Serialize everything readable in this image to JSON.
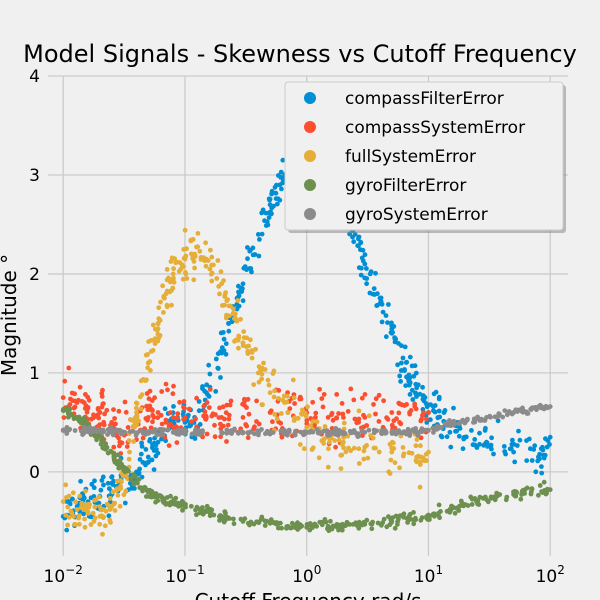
{
  "chart_data": {
    "type": "scatter",
    "title": "Model Signals - Skewness vs Cutoff Frequency",
    "xlabel": "Cutoff Frequency rad/s",
    "ylabel": "Magnitude °",
    "x_scale": "log",
    "xlim": [
      0.0075,
      140
    ],
    "ylim": [
      -0.85,
      4.0
    ],
    "x_ticks": [
      {
        "value": 0.01,
        "base": "10",
        "exp": "−2"
      },
      {
        "value": 0.1,
        "base": "10",
        "exp": "−1"
      },
      {
        "value": 1,
        "base": "10",
        "exp": "0"
      },
      {
        "value": 10,
        "base": "10",
        "exp": "1"
      },
      {
        "value": 100,
        "base": "10",
        "exp": "2"
      }
    ],
    "y_ticks": [
      {
        "value": 0,
        "label": "0"
      },
      {
        "value": 1,
        "label": "1"
      },
      {
        "value": 2,
        "label": "2"
      },
      {
        "value": 3,
        "label": "3"
      },
      {
        "value": 4,
        "label": "4"
      }
    ],
    "grid": true,
    "legend_position": "top-right",
    "series": [
      {
        "name": "compassFilterError",
        "color": "#008fd5",
        "points": [
          [
            0.01,
            -0.45
          ],
          [
            0.013,
            -0.35
          ],
          [
            0.016,
            -0.3
          ],
          [
            0.02,
            -0.25
          ],
          [
            0.025,
            -0.2
          ],
          [
            0.03,
            -0.1
          ],
          [
            0.04,
            0.0
          ],
          [
            0.05,
            0.15
          ],
          [
            0.06,
            0.3
          ],
          [
            0.08,
            0.5
          ],
          [
            0.1,
            0.5
          ],
          [
            0.12,
            0.55
          ],
          [
            0.15,
            0.8
          ],
          [
            0.2,
            1.2
          ],
          [
            0.25,
            1.6
          ],
          [
            0.3,
            1.9
          ],
          [
            0.4,
            2.4
          ],
          [
            0.5,
            2.7
          ],
          [
            0.6,
            2.9
          ],
          [
            0.7,
            3.1
          ],
          [
            0.8,
            3.25
          ],
          [
            0.9,
            3.3
          ],
          [
            1.0,
            3.35
          ],
          [
            1.2,
            3.3
          ],
          [
            1.5,
            3.1
          ],
          [
            1.8,
            2.9
          ],
          [
            2.0,
            2.75
          ],
          [
            2.5,
            2.4
          ],
          [
            3.0,
            2.1
          ],
          [
            4.0,
            1.7
          ],
          [
            5.0,
            1.4
          ],
          [
            6.0,
            1.1
          ],
          [
            7.0,
            0.95
          ],
          [
            8.0,
            0.85
          ],
          [
            10,
            0.6
          ],
          [
            12,
            0.55
          ],
          [
            15,
            0.4
          ],
          [
            20,
            0.35
          ],
          [
            30,
            0.3
          ],
          [
            50,
            0.2
          ],
          [
            80,
            0.15
          ],
          [
            100,
            0.35
          ]
        ]
      },
      {
        "name": "compassSystemError",
        "color": "#fc4f30",
        "points": [
          [
            0.01,
            0.75
          ],
          [
            0.013,
            0.7
          ],
          [
            0.016,
            0.65
          ],
          [
            0.02,
            0.6
          ],
          [
            0.025,
            0.5
          ],
          [
            0.03,
            0.4
          ],
          [
            0.04,
            0.5
          ],
          [
            0.05,
            0.55
          ],
          [
            0.06,
            0.6
          ],
          [
            0.08,
            0.55
          ],
          [
            0.1,
            0.55
          ],
          [
            0.15,
            0.55
          ],
          [
            0.2,
            0.55
          ],
          [
            0.3,
            0.55
          ],
          [
            0.5,
            0.6
          ],
          [
            0.7,
            0.6
          ],
          [
            1.0,
            0.6
          ],
          [
            1.5,
            0.55
          ],
          [
            2.0,
            0.55
          ],
          [
            3.0,
            0.55
          ],
          [
            5.0,
            0.6
          ],
          [
            7.0,
            0.6
          ],
          [
            10,
            0.6
          ]
        ]
      },
      {
        "name": "fullSystemError",
        "color": "#e5ae38",
        "points": [
          [
            0.01,
            -0.3
          ],
          [
            0.013,
            -0.38
          ],
          [
            0.016,
            -0.42
          ],
          [
            0.02,
            -0.45
          ],
          [
            0.025,
            -0.35
          ],
          [
            0.03,
            -0.1
          ],
          [
            0.035,
            0.2
          ],
          [
            0.04,
            0.6
          ],
          [
            0.05,
            1.1
          ],
          [
            0.06,
            1.5
          ],
          [
            0.07,
            1.8
          ],
          [
            0.08,
            2.0
          ],
          [
            0.1,
            2.15
          ],
          [
            0.12,
            2.2
          ],
          [
            0.15,
            2.15
          ],
          [
            0.2,
            1.9
          ],
          [
            0.25,
            1.6
          ],
          [
            0.3,
            1.3
          ],
          [
            0.4,
            1.0
          ],
          [
            0.5,
            0.8
          ],
          [
            0.7,
            0.6
          ],
          [
            1.0,
            0.45
          ],
          [
            1.5,
            0.35
          ],
          [
            2.0,
            0.3
          ],
          [
            3.0,
            0.25
          ],
          [
            5.0,
            0.2
          ],
          [
            8.0,
            0.15
          ],
          [
            10,
            0.2
          ]
        ]
      },
      {
        "name": "gyroFilterError",
        "color": "#6d904f",
        "points": [
          [
            0.01,
            0.62
          ],
          [
            0.013,
            0.55
          ],
          [
            0.016,
            0.45
          ],
          [
            0.02,
            0.35
          ],
          [
            0.025,
            0.2
          ],
          [
            0.03,
            0.05
          ],
          [
            0.04,
            -0.1
          ],
          [
            0.05,
            -0.2
          ],
          [
            0.06,
            -0.25
          ],
          [
            0.08,
            -0.3
          ],
          [
            0.1,
            -0.35
          ],
          [
            0.15,
            -0.4
          ],
          [
            0.2,
            -0.45
          ],
          [
            0.3,
            -0.5
          ],
          [
            0.5,
            -0.52
          ],
          [
            0.7,
            -0.55
          ],
          [
            1.0,
            -0.56
          ],
          [
            1.5,
            -0.55
          ],
          [
            2.0,
            -0.55
          ],
          [
            3.0,
            -0.53
          ],
          [
            5.0,
            -0.5
          ],
          [
            7.0,
            -0.47
          ],
          [
            10,
            -0.45
          ],
          [
            15,
            -0.38
          ],
          [
            20,
            -0.33
          ],
          [
            30,
            -0.28
          ],
          [
            50,
            -0.23
          ],
          [
            70,
            -0.2
          ],
          [
            100,
            -0.18
          ]
        ]
      },
      {
        "name": "gyroSystemError",
        "color": "#8b8b8b",
        "points": [
          [
            0.01,
            0.42
          ],
          [
            0.015,
            0.42
          ],
          [
            0.02,
            0.42
          ],
          [
            0.03,
            0.41
          ],
          [
            0.05,
            0.4
          ],
          [
            0.08,
            0.4
          ],
          [
            0.1,
            0.4
          ],
          [
            0.2,
            0.4
          ],
          [
            0.3,
            0.4
          ],
          [
            0.5,
            0.4
          ],
          [
            0.7,
            0.4
          ],
          [
            1.0,
            0.4
          ],
          [
            1.5,
            0.4
          ],
          [
            2.0,
            0.4
          ],
          [
            3.0,
            0.4
          ],
          [
            5.0,
            0.4
          ],
          [
            7.0,
            0.4
          ],
          [
            10,
            0.42
          ],
          [
            15,
            0.48
          ],
          [
            20,
            0.51
          ],
          [
            30,
            0.55
          ],
          [
            50,
            0.6
          ],
          [
            70,
            0.63
          ],
          [
            100,
            0.66
          ]
        ]
      }
    ]
  }
}
